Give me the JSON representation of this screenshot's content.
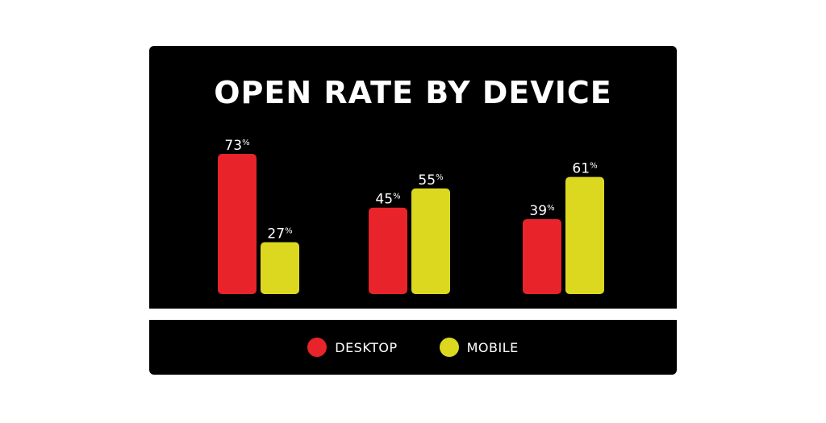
{
  "chart_data": {
    "type": "bar",
    "title": "OPEN RATE BY DEVICE",
    "categories": [
      "",
      "",
      ""
    ],
    "series": [
      {
        "name": "DESKTOP",
        "color": "#e8232a",
        "values": [
          73,
          45,
          39
        ]
      },
      {
        "name": "MOBILE",
        "color": "#dcd820",
        "values": [
          27,
          55,
          61
        ]
      }
    ],
    "value_suffix": "%",
    "ylim": [
      0,
      100
    ],
    "grid": false,
    "legend_position": "bottom",
    "background": "#000000"
  }
}
